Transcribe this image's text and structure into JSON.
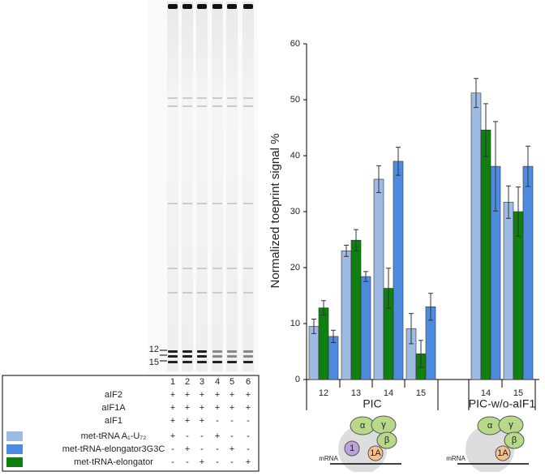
{
  "chart_data": {
    "type": "bar",
    "y_label": "Normalized toeprint signal %",
    "groups": [
      {
        "name": "PIC",
        "categories": [
          "12",
          "13",
          "14",
          "15"
        ]
      },
      {
        "name": "PIC-w/o-aIF1",
        "categories": [
          "14",
          "15"
        ]
      }
    ],
    "series": [
      {
        "color": "#9dbbe3",
        "values": [
          9.5,
          23,
          35.8,
          9.1,
          51.2,
          31.7
        ],
        "errors": [
          1.3,
          1,
          2.4,
          2.7,
          2.6,
          2.9
        ]
      },
      {
        "color": "#0f7f0f",
        "values": [
          12.8,
          24.9,
          16.3,
          4.6,
          44.6,
          30
        ],
        "errors": [
          1.3,
          1.9,
          3.6,
          2.4,
          4.7,
          4.4
        ]
      },
      {
        "color": "#4d8be0",
        "values": [
          7.7,
          18.4,
          39,
          13,
          38.1,
          38.1
        ],
        "errors": [
          1.1,
          0.9,
          2.5,
          2.4,
          8,
          3.6
        ]
      }
    ],
    "ylim": [
      0,
      60
    ],
    "yticks": [
      0,
      10,
      20,
      30,
      40,
      50,
      60
    ]
  },
  "gel": {
    "markers": [
      "12",
      "15"
    ]
  },
  "table": {
    "lanes": [
      "1",
      "2",
      "3",
      "4",
      "5",
      "6"
    ],
    "rows": [
      {
        "label": "aIF2",
        "marks": [
          "+",
          "+",
          "+",
          "+",
          "+",
          "+"
        ]
      },
      {
        "label": "aIF1A",
        "marks": [
          "+",
          "+",
          "+",
          "+",
          "+",
          "+"
        ]
      },
      {
        "label": "aIF1",
        "marks": [
          "+",
          "+",
          "+",
          "-",
          "-",
          "-"
        ]
      },
      {
        "label": "met-tRNA A₁-U₇₂",
        "color": "#9dbbe3",
        "marks": [
          "+",
          "-",
          "-",
          "+",
          "-",
          "-"
        ]
      },
      {
        "label": "met-tRNA-elongator3G3C",
        "color": "#4d8be0",
        "marks": [
          "-",
          "+",
          "-",
          "-",
          "+",
          "-"
        ]
      },
      {
        "label": "met-tRNA-elongator",
        "color": "#0f7f0f",
        "marks": [
          "-",
          "-",
          "+",
          "-",
          "-",
          "+"
        ]
      }
    ]
  },
  "diagrams": [
    {
      "alpha": "α",
      "gamma": "γ",
      "beta": "β",
      "f1": "1",
      "f1a": "1A",
      "mrna": "mRNA"
    },
    {
      "alpha": "α",
      "gamma": "γ",
      "beta": "β",
      "f1a": "1A",
      "mrna": "mRNA"
    }
  ]
}
